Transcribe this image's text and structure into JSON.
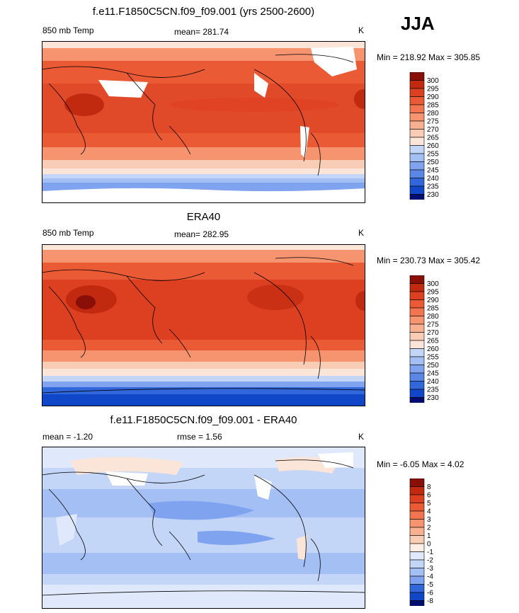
{
  "season": "JJA",
  "colors": {
    "warm": [
      "#fbe5d9",
      "#f9ccb5",
      "#f8b090",
      "#f69470",
      "#f27550",
      "#ea5a35",
      "#dd4020",
      "#c22a10",
      "#8a0f08"
    ],
    "cool": [
      "#fdeee4",
      "#dfe9fb",
      "#c4d6f8",
      "#a3bff4",
      "#7fa3ee",
      "#5a86e6",
      "#3267dc",
      "#1046c8",
      "#0021a6",
      "#000d70"
    ],
    "land_outline": "#000000"
  },
  "chart_data": [
    {
      "type": "heatmap",
      "title": "f.e11.F1850C5CN.f09_f09.001 (yrs 2500-2600)",
      "left_label": "850 mb Temp",
      "center_label": "mean= 281.74",
      "units": "K",
      "min_max": "Min = 218.92 Max = 305.85",
      "colorbar_levels": [
        "300",
        "295",
        "290",
        "285",
        "280",
        "275",
        "270",
        "265",
        "260",
        "255",
        "250",
        "245",
        "240",
        "235",
        "230"
      ],
      "colorbar_colors": [
        "#8a0f08",
        "#c22a10",
        "#dd4020",
        "#ea5a35",
        "#f27550",
        "#f69470",
        "#f8b090",
        "#f9ccb5",
        "#fbe5d9",
        "#c4d6f8",
        "#a3bff4",
        "#7fa3ee",
        "#5a86e6",
        "#3267dc",
        "#1046c8",
        "#000d70"
      ]
    },
    {
      "type": "heatmap",
      "title": "ERA40",
      "left_label": "850 mb Temp",
      "center_label": "mean= 282.95",
      "units": "K",
      "min_max": "Min = 230.73 Max = 305.42",
      "colorbar_levels": [
        "300",
        "295",
        "290",
        "285",
        "280",
        "275",
        "270",
        "265",
        "260",
        "255",
        "250",
        "245",
        "240",
        "235",
        "230"
      ],
      "colorbar_colors": [
        "#8a0f08",
        "#c22a10",
        "#dd4020",
        "#ea5a35",
        "#f27550",
        "#f69470",
        "#f8b090",
        "#f9ccb5",
        "#fbe5d9",
        "#c4d6f8",
        "#a3bff4",
        "#7fa3ee",
        "#5a86e6",
        "#3267dc",
        "#1046c8",
        "#000d70"
      ]
    },
    {
      "type": "heatmap",
      "title": "f.e11.F1850C5CN.f09_f09.001 - ERA40",
      "left_label": "mean =  -1.20",
      "center_label": "rmse =   1.56",
      "units": "K",
      "min_max": "Min =  -6.05 Max =   4.02",
      "colorbar_levels": [
        "8",
        "6",
        "5",
        "4",
        "3",
        "2",
        "1",
        "0",
        "-1",
        "-2",
        "-3",
        "-4",
        "-5",
        "-6",
        "-8"
      ],
      "colorbar_colors": [
        "#8a0f08",
        "#c22a10",
        "#dd4020",
        "#ea5a35",
        "#f27550",
        "#f69470",
        "#f8b090",
        "#f9ccb5",
        "#fdeee4",
        "#dfe9fb",
        "#c4d6f8",
        "#a3bff4",
        "#7fa3ee",
        "#3267dc",
        "#1046c8",
        "#000d70"
      ]
    }
  ]
}
